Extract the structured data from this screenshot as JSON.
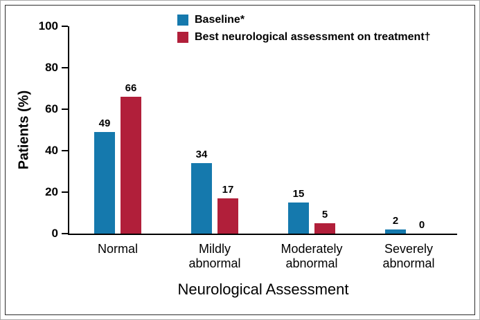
{
  "chart_data": {
    "type": "bar",
    "title": "",
    "categories": [
      "Normal",
      "Mildly\nabnormal",
      "Moderately\nabnormal",
      "Severely\nabnormal"
    ],
    "series": [
      {
        "name": "Baseline*",
        "slug": "baseline",
        "color": "#1579ad",
        "values": [
          49,
          34,
          15,
          2
        ]
      },
      {
        "name": "Best neurological assessment on treatment†",
        "slug": "treatment",
        "color": "#b11f3a",
        "values": [
          66,
          17,
          5,
          0
        ]
      }
    ],
    "xlabel": "Neurological Assessment",
    "ylabel": "Patients (%)",
    "ylim": [
      0,
      100
    ],
    "yticks": [
      0,
      20,
      40,
      60,
      80,
      100
    ],
    "grid": false,
    "legend_position": "top",
    "value_labels": true
  }
}
